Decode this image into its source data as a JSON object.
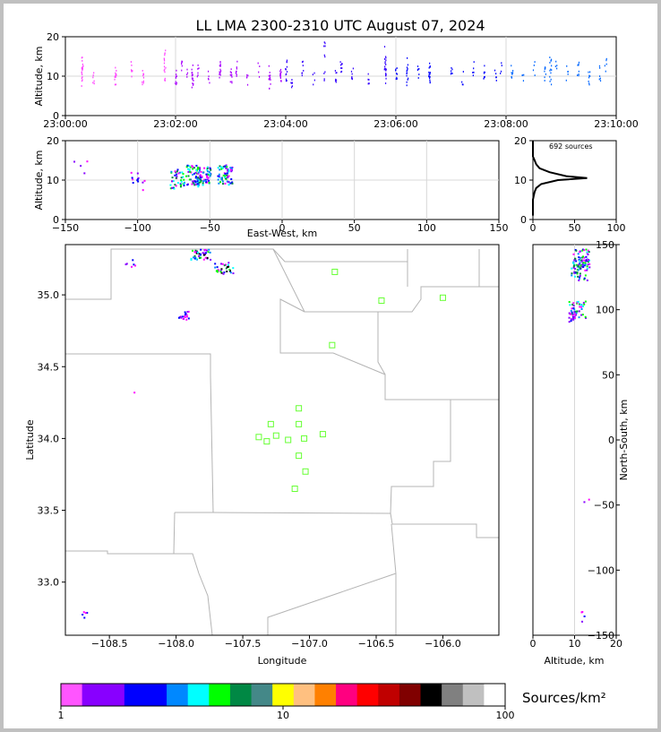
{
  "title": "LL LMA 2300-2310 UTC August 07, 2024",
  "chart_data": [
    {
      "id": "time-height",
      "type": "scatter",
      "ylabel": "Altitude, km",
      "xlim": [
        "23:00:00",
        "23:10:00"
      ],
      "ylim": [
        0,
        20
      ],
      "xticks": [
        "23:00:00",
        "23:02:00",
        "23:04:00",
        "23:06:00",
        "23:08:00",
        "23:10:00"
      ],
      "yticks": [
        "0",
        "10",
        "20"
      ],
      "sources_minutes": [
        [
          0.3,
          11
        ],
        [
          0.3,
          9
        ],
        [
          0.3,
          13
        ],
        [
          0.5,
          10
        ],
        [
          0.9,
          11
        ],
        [
          0.9,
          9
        ],
        [
          1.2,
          12
        ],
        [
          1.4,
          10
        ],
        [
          1.8,
          11
        ],
        [
          1.8,
          13
        ],
        [
          1.8,
          15
        ],
        [
          2.0,
          10
        ],
        [
          2.1,
          12
        ],
        [
          2.2,
          10
        ],
        [
          2.3,
          11
        ],
        [
          2.3,
          9
        ],
        [
          2.4,
          12
        ],
        [
          2.6,
          10
        ],
        [
          2.8,
          11
        ],
        [
          2.8,
          12
        ],
        [
          3.0,
          11
        ],
        [
          3.0,
          9
        ],
        [
          3.1,
          12
        ],
        [
          3.3,
          10
        ],
        [
          3.5,
          12
        ],
        [
          3.7,
          9
        ],
        [
          3.7,
          11
        ],
        [
          3.9,
          12
        ],
        [
          3.9,
          10
        ],
        [
          4.0,
          11
        ],
        [
          4.0,
          13
        ],
        [
          4.1,
          9
        ],
        [
          4.3,
          12
        ],
        [
          4.5,
          10
        ],
        [
          4.7,
          11
        ],
        [
          4.7,
          17
        ],
        [
          4.9,
          10
        ],
        [
          5.0,
          12
        ],
        [
          5.2,
          11
        ],
        [
          5.5,
          10
        ],
        [
          5.8,
          12
        ],
        [
          5.8,
          10
        ],
        [
          5.8,
          16
        ],
        [
          6.0,
          11
        ],
        [
          6.2,
          13
        ],
        [
          6.2,
          9
        ],
        [
          6.4,
          11
        ],
        [
          6.6,
          12
        ],
        [
          6.6,
          10
        ],
        [
          7.0,
          11
        ],
        [
          7.2,
          10
        ],
        [
          7.4,
          12
        ],
        [
          7.6,
          11
        ],
        [
          7.8,
          10
        ],
        [
          7.9,
          12
        ],
        [
          8.1,
          11
        ],
        [
          8.3,
          10
        ],
        [
          8.5,
          12
        ],
        [
          8.7,
          11
        ],
        [
          8.8,
          13
        ],
        [
          8.8,
          10
        ],
        [
          8.9,
          12
        ],
        [
          9.1,
          11
        ],
        [
          9.3,
          12
        ],
        [
          9.5,
          10
        ],
        [
          9.7,
          11
        ],
        [
          9.8,
          13
        ]
      ]
    },
    {
      "id": "ew-height",
      "type": "scatter",
      "xlabel": "East-West, km",
      "ylabel": "Altitude, km",
      "xlim": [
        -150,
        150
      ],
      "ylim": [
        0,
        20
      ],
      "xticks": [
        "−150",
        "−100",
        "−50",
        "0",
        "50",
        "100",
        "150"
      ],
      "yticks": [
        "0",
        "10",
        "20"
      ],
      "clusters": [
        {
          "x": -73,
          "y": 10.5,
          "n": 40
        },
        {
          "x": -62,
          "y": 11.5,
          "n": 50
        },
        {
          "x": -55,
          "y": 11,
          "n": 60
        },
        {
          "x": -40,
          "y": 11.5,
          "n": 60
        },
        {
          "x": -100,
          "y": 10,
          "n": 12
        },
        {
          "x": -140,
          "y": 13,
          "n": 4
        }
      ]
    },
    {
      "id": "height-histogram",
      "type": "line",
      "label": "692 sources",
      "xlim": [
        0,
        100
      ],
      "ylim": [
        0,
        20
      ],
      "xticks": [
        "0",
        "50",
        "100"
      ],
      "yticks": [
        "0",
        "10",
        "20"
      ],
      "profile": [
        [
          0,
          1
        ],
        [
          0,
          2
        ],
        [
          0,
          3
        ],
        [
          0,
          4
        ],
        [
          0,
          5
        ],
        [
          1,
          6
        ],
        [
          2,
          7
        ],
        [
          4,
          8
        ],
        [
          10,
          9
        ],
        [
          30,
          10
        ],
        [
          65,
          10.5
        ],
        [
          40,
          11
        ],
        [
          20,
          12
        ],
        [
          8,
          13
        ],
        [
          4,
          14
        ],
        [
          2,
          15
        ],
        [
          0,
          16
        ],
        [
          0,
          17
        ],
        [
          0,
          18
        ],
        [
          0,
          19
        ],
        [
          0,
          20
        ]
      ]
    },
    {
      "id": "plan-view",
      "type": "scatter",
      "xlabel": "Longitude",
      "ylabel": "Latitude",
      "xlim": [
        -108.83,
        -105.58
      ],
      "ylim": [
        32.63,
        35.35
      ],
      "xticks": [
        "−108.5",
        "−108.0",
        "−107.5",
        "−107.0",
        "−106.5",
        "−106.0"
      ],
      "yticks": [
        "33.0",
        "33.5",
        "34.0",
        "34.5",
        "35.0"
      ],
      "stations": [
        [
          -106.81,
          35.16
        ],
        [
          -106.46,
          34.96
        ],
        [
          -106.0,
          34.98
        ],
        [
          -106.83,
          34.65
        ],
        [
          -107.08,
          34.21
        ],
        [
          -107.29,
          34.1
        ],
        [
          -107.08,
          34.1
        ],
        [
          -107.38,
          34.01
        ],
        [
          -107.25,
          34.02
        ],
        [
          -107.32,
          33.98
        ],
        [
          -107.16,
          33.99
        ],
        [
          -107.04,
          34.0
        ],
        [
          -106.9,
          34.03
        ],
        [
          -107.08,
          33.88
        ],
        [
          -107.03,
          33.77
        ],
        [
          -107.11,
          33.65
        ]
      ],
      "clusters": [
        {
          "lon": -107.82,
          "lat": 35.29,
          "n": 40
        },
        {
          "lon": -107.65,
          "lat": 35.19,
          "n": 30
        },
        {
          "lon": -107.95,
          "lat": 34.86,
          "n": 18
        },
        {
          "lon": -108.35,
          "lat": 35.22,
          "n": 6
        },
        {
          "lon": -108.28,
          "lat": 34.32,
          "n": 1
        },
        {
          "lon": -108.7,
          "lat": 32.77,
          "n": 5
        }
      ]
    },
    {
      "id": "ns-height",
      "type": "scatter",
      "xlabel": "Altitude, km",
      "ylabel": "North-South, km",
      "xlim": [
        0,
        20
      ],
      "ylim": [
        -150,
        150
      ],
      "xticks": [
        "0",
        "10",
        "20"
      ],
      "yticks": [
        "−150",
        "−100",
        "−50",
        "0",
        "50",
        "100",
        "150"
      ],
      "clusters": [
        {
          "alt": 11.5,
          "ns": 140,
          "n": 60
        },
        {
          "alt": 11,
          "ns": 130,
          "n": 40
        },
        {
          "alt": 10.5,
          "ns": 100,
          "n": 40
        },
        {
          "alt": 9.5,
          "ns": 95,
          "n": 15
        },
        {
          "alt": 13,
          "ns": -45,
          "n": 2
        },
        {
          "alt": 12,
          "ns": -135,
          "n": 4
        }
      ]
    }
  ],
  "colorbar": {
    "label": "Sources/km²",
    "ticks": [
      "1",
      "10",
      "100"
    ],
    "colors": [
      "#ff55ff",
      "#8800ff",
      "#8800ff",
      "#0000ff",
      "#0000ff",
      "#0088ff",
      "#00ffff",
      "#00ff00",
      "#008844",
      "#448888",
      "#ffff00",
      "#ffc080",
      "#ff8000",
      "#ff0080",
      "#ff0000",
      "#c00000",
      "#800000",
      "#000000",
      "#808080",
      "#c0c0c0",
      "#ffffff"
    ]
  },
  "palette": {
    "time_colors": [
      "#ff44ff",
      "#aa00ff",
      "#3300ff",
      "#0000ff",
      "#0066ff"
    ],
    "density_colors": [
      "#ff00ff",
      "#8800ff",
      "#0000ff",
      "#0088ff",
      "#00ffff",
      "#00ff00",
      "#008844",
      "#000000"
    ],
    "station_color": "#66ff33",
    "grid_color": "#d8d8d8",
    "map_line_color": "#b4b4b4"
  }
}
